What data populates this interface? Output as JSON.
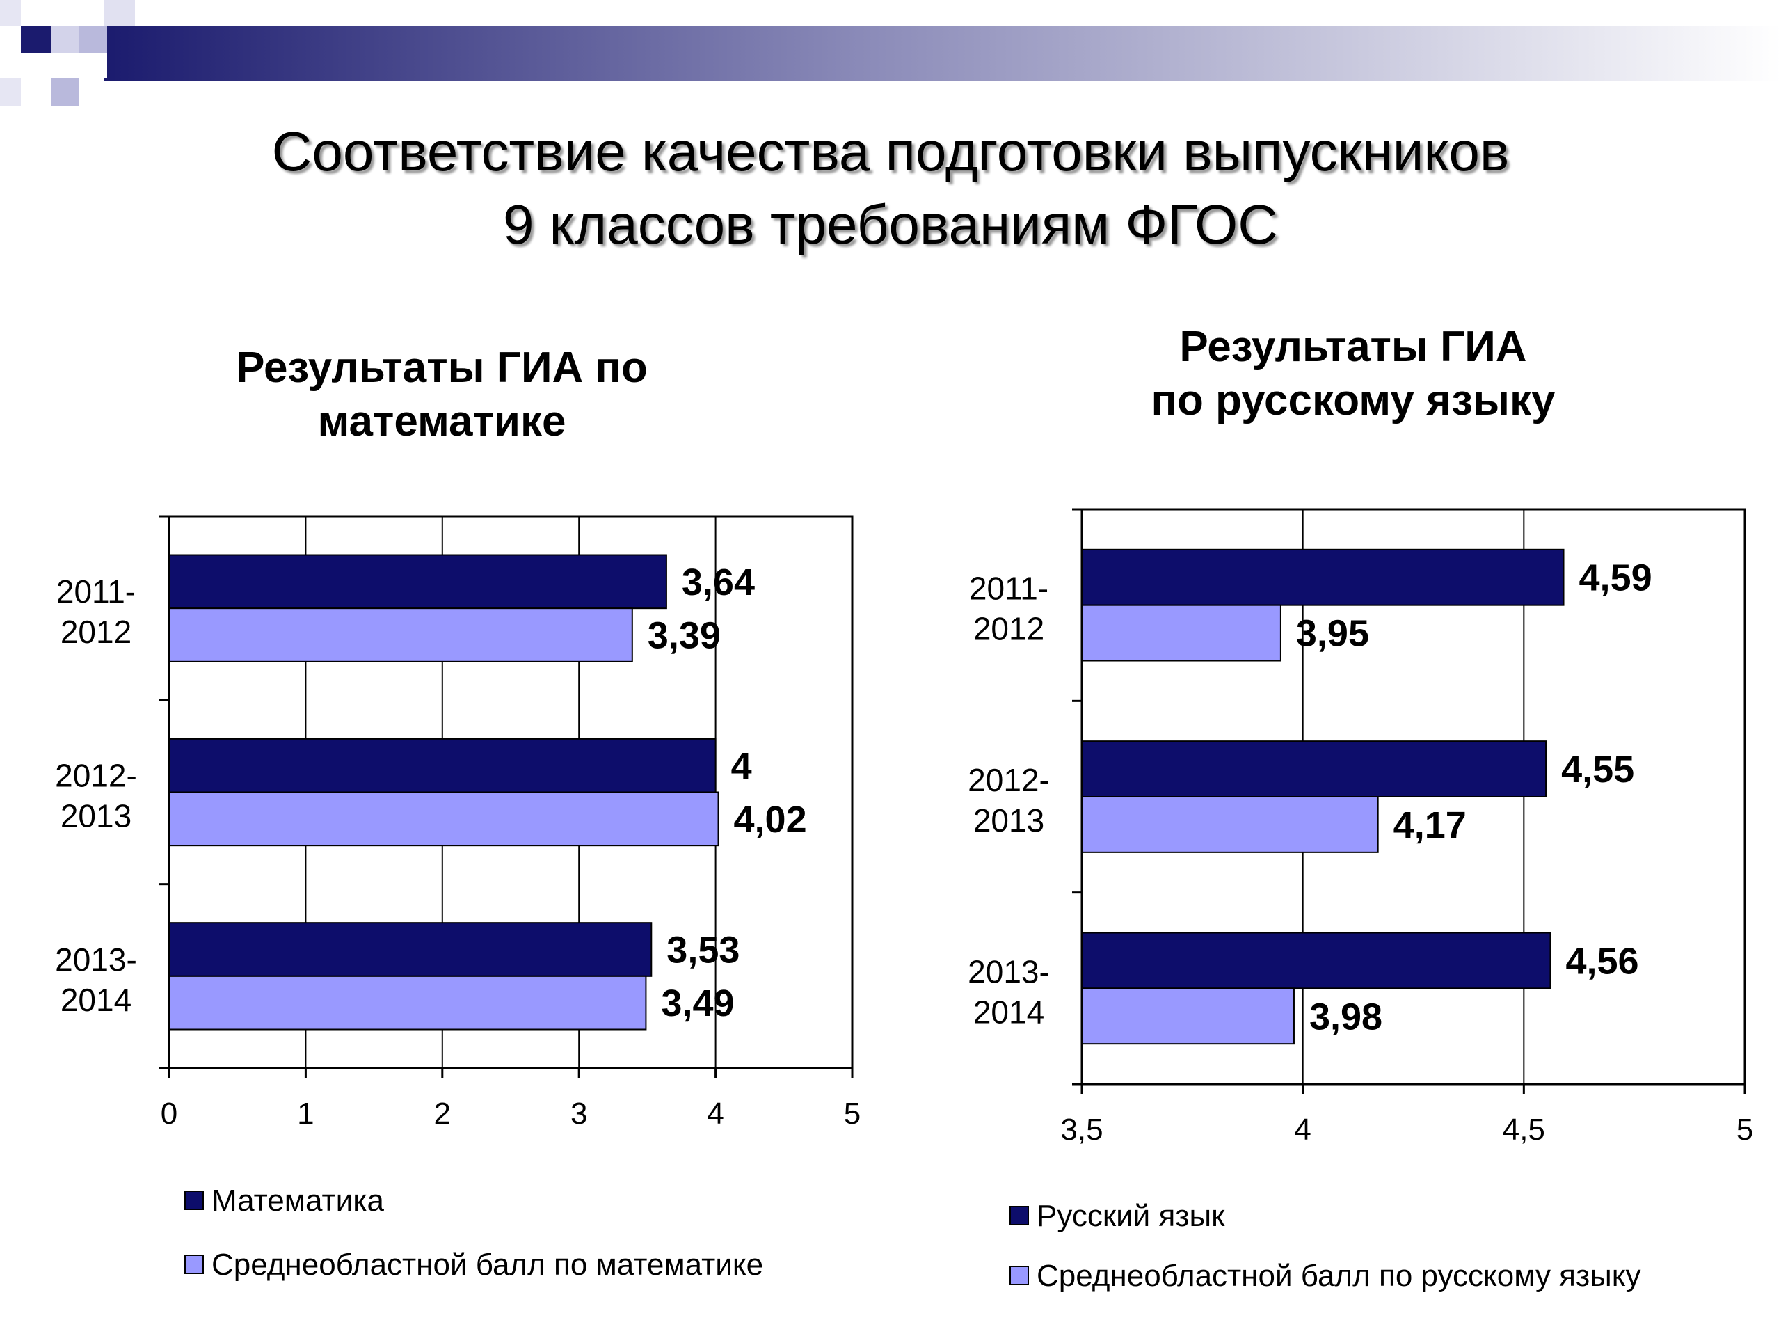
{
  "slide": {
    "title_line1": "Соответствие качества подготовки выпускников",
    "title_line2": "9 классов требованиям ФГОС"
  },
  "colors": {
    "dark_series": "#0d0d6b",
    "light_series": "#9999ff",
    "decor_dark": "#1b1b6e",
    "decor_light": "#c8c8e8"
  },
  "chart_data": [
    {
      "type": "bar",
      "orientation": "horizontal",
      "title_line1": "Результаты ГИА по",
      "title_line2": "математике",
      "categories": [
        "2011-2012",
        "2012-2013",
        "2013-2014"
      ],
      "category_lines": [
        [
          "2011-",
          "2012"
        ],
        [
          "2012-",
          "2013"
        ],
        [
          "2013-",
          "2014"
        ]
      ],
      "series": [
        {
          "name": "Математика",
          "values": [
            3.64,
            4,
            3.53
          ],
          "labels": [
            "3,64",
            "4",
            "3,53"
          ]
        },
        {
          "name": "Среднеобластной балл по математике",
          "values": [
            3.39,
            4.02,
            3.49
          ],
          "labels": [
            "3,39",
            "4,02",
            "3,49"
          ]
        }
      ],
      "xlim": [
        0,
        5
      ],
      "xticks": [
        0,
        1,
        2,
        3,
        4,
        5
      ],
      "xtick_labels": [
        "0",
        "1",
        "2",
        "3",
        "4",
        "5"
      ],
      "grid": true,
      "legend_position": "bottom"
    },
    {
      "type": "bar",
      "orientation": "horizontal",
      "title_line1": "Результаты ГИА",
      "title_line2": "по русскому языку",
      "categories": [
        "2011-2012",
        "2012-2013",
        "2013-2014"
      ],
      "category_lines": [
        [
          "2011-",
          "2012"
        ],
        [
          "2012-",
          "2013"
        ],
        [
          "2013-",
          "2014"
        ]
      ],
      "series": [
        {
          "name": "Русский язык",
          "values": [
            4.59,
            4.55,
            4.56
          ],
          "labels": [
            "4,59",
            "4,55",
            "4,56"
          ]
        },
        {
          "name": "Среднеобластной балл по русскому языку",
          "values": [
            3.95,
            4.17,
            3.98
          ],
          "labels": [
            "3,95",
            "4,17",
            "3,98"
          ]
        }
      ],
      "xlim": [
        3.5,
        5
      ],
      "xticks": [
        3.5,
        4,
        4.5,
        5
      ],
      "xtick_labels": [
        "3,5",
        "4",
        "4,5",
        "5"
      ],
      "grid": true,
      "legend_position": "bottom"
    }
  ]
}
